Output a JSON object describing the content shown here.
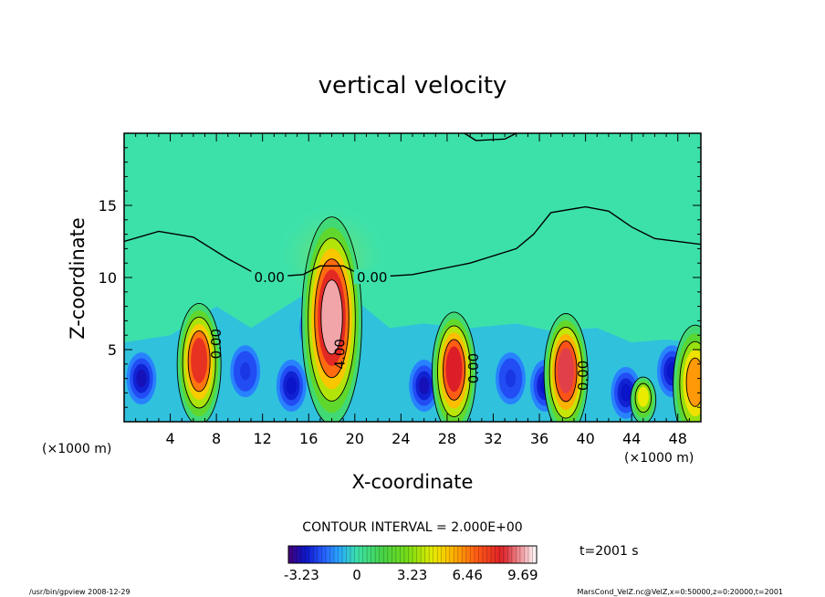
{
  "chart_data": {
    "type": "contour",
    "title": "vertical velocity",
    "xlabel": "X-coordinate",
    "ylabel": "Z-coordinate",
    "x_unit_left": "(×1000 m)",
    "x_unit_right": "(×1000 m)",
    "x_range": [
      0,
      50
    ],
    "y_range": [
      0,
      20
    ],
    "x_ticks": [
      4,
      8,
      12,
      16,
      20,
      24,
      28,
      32,
      36,
      40,
      44,
      48
    ],
    "y_ticks": [
      5,
      10,
      15
    ],
    "contour_interval_text": "CONTOUR INTERVAL = 2.000E+00",
    "contour_labels": [
      {
        "text": "0.00",
        "x": 12.6,
        "z": 10.0
      },
      {
        "text": "0.00",
        "x": 21.5,
        "z": 10.0
      },
      {
        "text": "0.00",
        "x": 8.0,
        "z": 5.4
      },
      {
        "text": "4.00",
        "x": 18.7,
        "z": 4.7
      },
      {
        "text": "0.00",
        "x": 30.3,
        "z": 3.7
      },
      {
        "text": "0.00",
        "x": 39.8,
        "z": 3.2
      }
    ],
    "updrafts": [
      {
        "x": 6.5,
        "z_peak": 4.0,
        "w_max": 8.0
      },
      {
        "x": 18.0,
        "z_peak": 7.0,
        "w_max": 9.7
      },
      {
        "x": 28.6,
        "z_peak": 3.4,
        "w_max": 8.5
      },
      {
        "x": 38.3,
        "z_peak": 3.3,
        "w_max": 8.8
      },
      {
        "x": 45.0,
        "z_peak": 1.5,
        "w_max": 4.5
      },
      {
        "x": 49.5,
        "z_peak": 2.5,
        "w_max": 6.0
      }
    ],
    "downdrafts": [
      {
        "x": 1.5,
        "z": 3.0,
        "w_min": -3.2
      },
      {
        "x": 10.5,
        "z": 3.5,
        "w_min": -2.5
      },
      {
        "x": 14.5,
        "z": 2.5,
        "w_min": -3.0
      },
      {
        "x": 16.5,
        "z": 6.5,
        "w_min": -2.0
      },
      {
        "x": 26.0,
        "z": 2.5,
        "w_min": -3.2
      },
      {
        "x": 33.5,
        "z": 3.0,
        "w_min": -2.5
      },
      {
        "x": 36.5,
        "z": 2.5,
        "w_min": -3.0
      },
      {
        "x": 43.5,
        "z": 2.0,
        "w_min": -3.0
      },
      {
        "x": 47.5,
        "z": 3.5,
        "w_min": -3.0
      }
    ],
    "zero_contour_upper": [
      [
        0,
        12.5
      ],
      [
        3,
        13.2
      ],
      [
        6,
        12.8
      ],
      [
        9,
        11.3
      ],
      [
        12,
        10.0
      ],
      [
        15.5,
        10.2
      ],
      [
        17,
        10.8
      ],
      [
        19,
        10.8
      ],
      [
        21,
        10.0
      ],
      [
        25,
        10.2
      ],
      [
        30,
        11.0
      ],
      [
        34,
        12.0
      ],
      [
        35.5,
        13.0
      ],
      [
        37,
        14.5
      ],
      [
        40,
        14.9
      ],
      [
        42,
        14.6
      ],
      [
        44,
        13.5
      ],
      [
        46,
        12.7
      ],
      [
        50,
        12.3
      ]
    ],
    "zero_contour_top": [
      [
        29.5,
        20
      ],
      [
        30.5,
        19.5
      ],
      [
        33,
        19.6
      ],
      [
        34,
        20
      ]
    ],
    "colorbar": {
      "min": -4.0,
      "max": 10.5,
      "ticks": [
        "-3.23",
        "0",
        "3.23",
        "6.46",
        "9.69"
      ],
      "tick_values": [
        -3.23,
        0,
        3.23,
        6.46,
        9.69
      ]
    },
    "time_label": "t=2001 s",
    "footer_left": "/usr/bin/gpview   2008-12-29",
    "footer_right": "MarsCond_VelZ.nc@VelZ,x=0:50000,z=0:20000,t=2001"
  }
}
